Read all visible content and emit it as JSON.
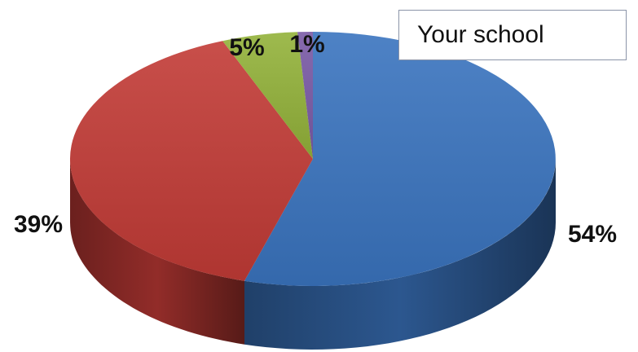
{
  "chart_data": {
    "type": "pie",
    "style": "3d",
    "slices": [
      {
        "value": 54,
        "label": "54%",
        "color": "#3a74bf"
      },
      {
        "value": 39,
        "label": "39%",
        "color": "#c23b36"
      },
      {
        "value": 5,
        "label": "5%",
        "color": "#93b23a"
      },
      {
        "value": 1,
        "label": "1%",
        "color": "#7a5aa6"
      }
    ],
    "legend": {
      "text": "Your school",
      "placement": "top-right"
    }
  }
}
